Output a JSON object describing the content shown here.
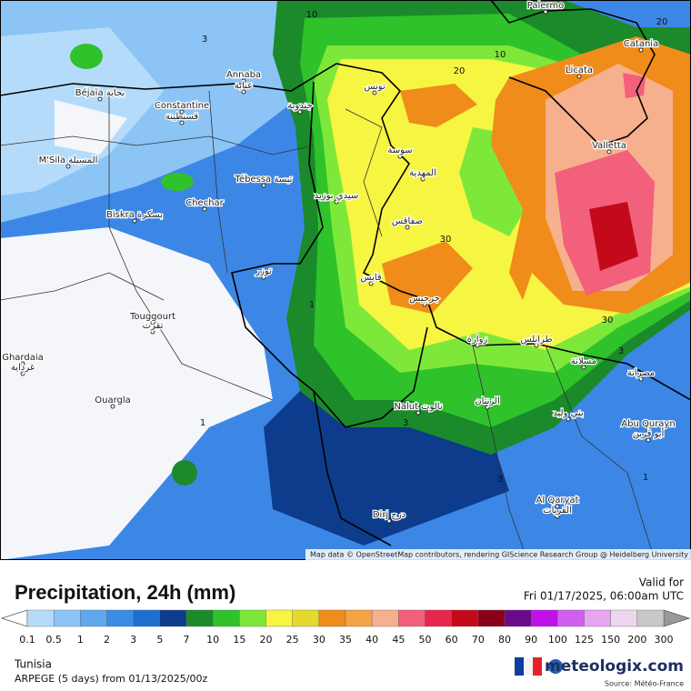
{
  "title": "Precipitation, 24h (mm)",
  "valid_label": "Valid for",
  "valid_time": "Fri 01/17/2025, 06:00am UTC",
  "region": "Tunisia",
  "model_run": "ARPEGE (5 days) from 01/13/2025/00z",
  "brand": "meteologix.com",
  "source": "Source: Météo-France",
  "attribution": "Map data © OpenStreetMap contributors, rendering GIScience Research Group @ Heidelberg University",
  "legend": {
    "labels": [
      "0.1",
      "0.5",
      "1",
      "2",
      "3",
      "5",
      "7",
      "10",
      "15",
      "20",
      "25",
      "30",
      "35",
      "40",
      "45",
      "50",
      "60",
      "70",
      "80",
      "90",
      "100",
      "125",
      "150",
      "200",
      "300"
    ],
    "colors": [
      "#b4dcfa",
      "#8cc4f5",
      "#5fa8ef",
      "#3a8ce6",
      "#1e6fd0",
      "#0d3c8c",
      "#1a8a2a",
      "#2fc22b",
      "#7ee83a",
      "#f6f542",
      "#e6d82c",
      "#f08c1a",
      "#f4a345",
      "#f7b08e",
      "#f2607c",
      "#e8264e",
      "#c40a1a",
      "#8a0019",
      "#6a0a8a",
      "#c012e8",
      "#d25ff0",
      "#e8a5f0",
      "#ecd8ec",
      "#c8c8c8"
    ]
  },
  "places": [
    "Palermo",
    "Catania",
    "Licata",
    "Valletta",
    "Annaba",
    "عنابة",
    "Béjaïa بجاية",
    "Constantine",
    "قسنطينة",
    "M'Sila المسيلة",
    "Tébessa تبسة",
    "Chechar",
    "Biskra بسكرة",
    "Touggourt",
    "تقرت",
    "Ghardaia",
    "غرداية",
    "Ouargla",
    "Nalut نالوت",
    "Dirj درج",
    "Al Qaryat",
    "القريات",
    "Abu Qurayn",
    "أبو قرين",
    "تونس",
    "سوسة",
    "المهدية",
    "صفاقس",
    "قابس",
    "جرجيس",
    "زوارة",
    "طرابلس",
    "مسلاتة",
    "مصراتة",
    "الزنتان",
    "بني وليد",
    "جندوبة",
    "سيدي بوزيد",
    "توزر"
  ],
  "contour_labels": [
    "10",
    "10",
    "20",
    "20",
    "30",
    "30",
    "1",
    "1",
    "1",
    "3",
    "3",
    "3",
    "3"
  ]
}
